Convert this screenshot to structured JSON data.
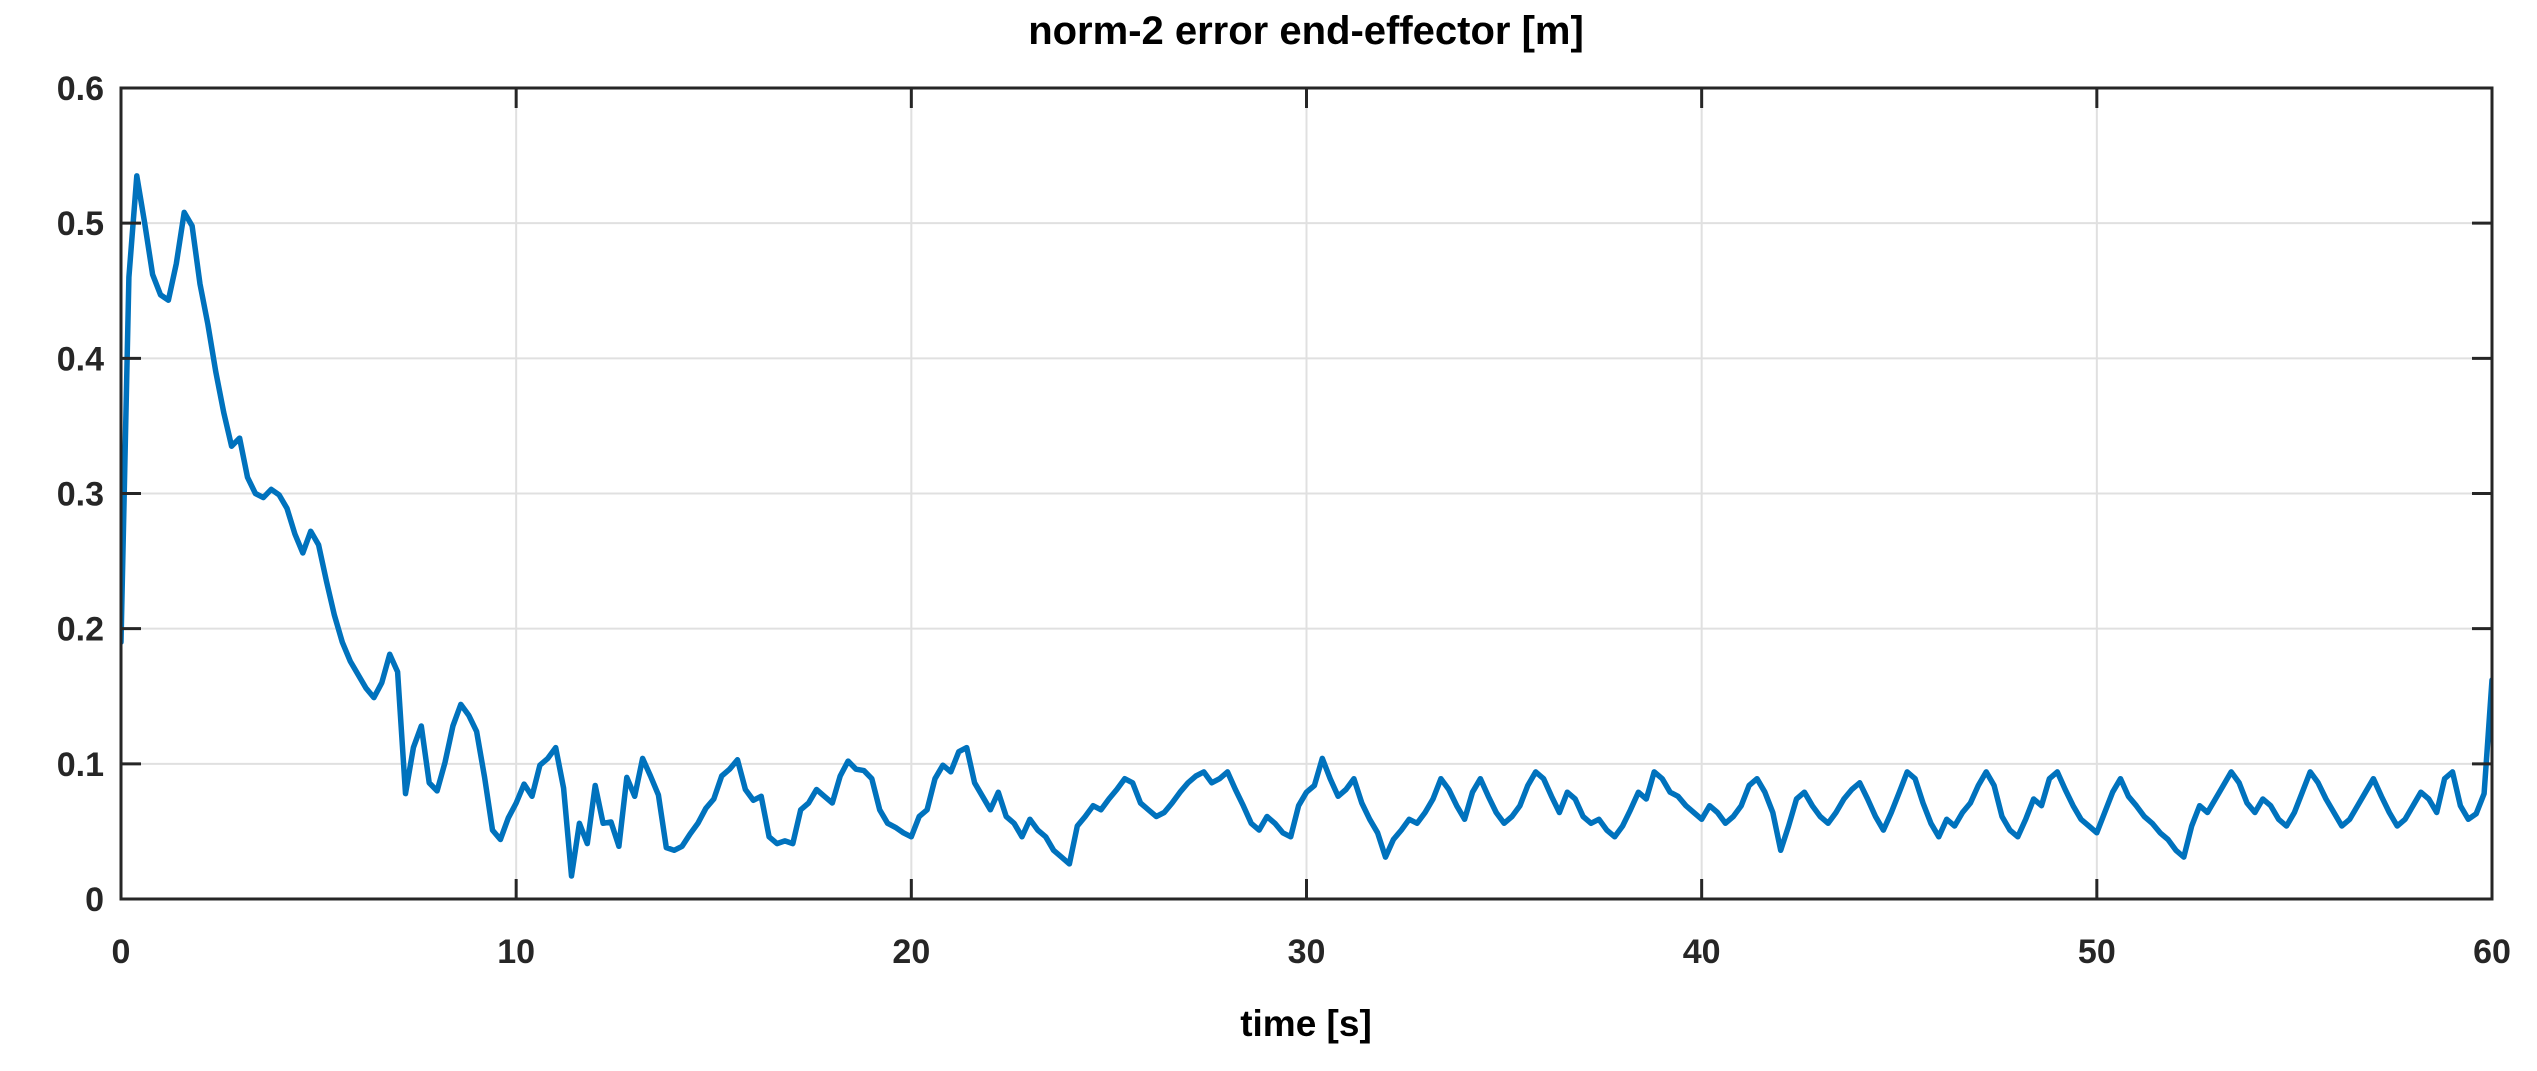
{
  "style": {
    "background": "#FFFFFF",
    "line_color": "#0072BD",
    "axis_color": "#262626",
    "grid_color": "#E0E0E0",
    "tick_label_color": "#262626",
    "text_color": "#000000"
  },
  "chart_data": {
    "type": "line",
    "title": "norm-2 error end-effector [m]",
    "xlabel": "time [s]",
    "ylabel": "",
    "xlim": [
      0,
      60
    ],
    "ylim": [
      0,
      0.6
    ],
    "xticks": [
      0,
      10,
      20,
      30,
      40,
      50,
      60
    ],
    "yticks": [
      0,
      0.1,
      0.2,
      0.3,
      0.4,
      0.5,
      0.6
    ],
    "grid": true,
    "legend": "none",
    "series": [
      {
        "name": "norm-2 error end-effector",
        "color": "#0072BD",
        "x_start": 0,
        "x_step": 0.2,
        "values": [
          0.19,
          0.46,
          0.535,
          0.5,
          0.462,
          0.447,
          0.443,
          0.47,
          0.508,
          0.498,
          0.455,
          0.425,
          0.39,
          0.36,
          0.335,
          0.341,
          0.312,
          0.3,
          0.297,
          0.303,
          0.299,
          0.289,
          0.27,
          0.256,
          0.272,
          0.262,
          0.235,
          0.21,
          0.19,
          0.176,
          0.166,
          0.156,
          0.149,
          0.16,
          0.181,
          0.168,
          0.078,
          0.112,
          0.128,
          0.086,
          0.08,
          0.101,
          0.128,
          0.144,
          0.136,
          0.124,
          0.09,
          0.051,
          0.044,
          0.06,
          0.071,
          0.085,
          0.076,
          0.099,
          0.104,
          0.112,
          0.082,
          0.017,
          0.056,
          0.041,
          0.084,
          0.056,
          0.057,
          0.039,
          0.09,
          0.076,
          0.104,
          0.091,
          0.077,
          0.038,
          0.036,
          0.039,
          0.048,
          0.056,
          0.067,
          0.074,
          0.091,
          0.096,
          0.103,
          0.081,
          0.073,
          0.076,
          0.046,
          0.041,
          0.043,
          0.041,
          0.066,
          0.071,
          0.081,
          0.076,
          0.071,
          0.091,
          0.102,
          0.096,
          0.095,
          0.089,
          0.066,
          0.056,
          0.053,
          0.049,
          0.046,
          0.061,
          0.066,
          0.089,
          0.099,
          0.094,
          0.109,
          0.112,
          0.086,
          0.076,
          0.066,
          0.079,
          0.061,
          0.056,
          0.046,
          0.059,
          0.051,
          0.046,
          0.036,
          0.031,
          0.026,
          0.054,
          0.061,
          0.069,
          0.066,
          0.074,
          0.081,
          0.089,
          0.086,
          0.071,
          0.066,
          0.061,
          0.064,
          0.071,
          0.079,
          0.086,
          0.091,
          0.094,
          0.086,
          0.089,
          0.094,
          0.081,
          0.069,
          0.056,
          0.051,
          0.061,
          0.056,
          0.049,
          0.046,
          0.069,
          0.079,
          0.084,
          0.104,
          0.089,
          0.076,
          0.081,
          0.089,
          0.071,
          0.059,
          0.049,
          0.031,
          0.044,
          0.051,
          0.059,
          0.056,
          0.064,
          0.074,
          0.089,
          0.081,
          0.069,
          0.059,
          0.079,
          0.089,
          0.076,
          0.064,
          0.056,
          0.061,
          0.069,
          0.084,
          0.094,
          0.089,
          0.076,
          0.064,
          0.079,
          0.074,
          0.061,
          0.056,
          0.059,
          0.051,
          0.046,
          0.054,
          0.066,
          0.079,
          0.074,
          0.094,
          0.089,
          0.079,
          0.076,
          0.069,
          0.064,
          0.059,
          0.069,
          0.064,
          0.056,
          0.061,
          0.069,
          0.084,
          0.089,
          0.079,
          0.064,
          0.036,
          0.054,
          0.074,
          0.079,
          0.069,
          0.061,
          0.056,
          0.064,
          0.074,
          0.081,
          0.086,
          0.074,
          0.061,
          0.051,
          0.064,
          0.079,
          0.094,
          0.089,
          0.071,
          0.056,
          0.046,
          0.059,
          0.054,
          0.064,
          0.071,
          0.084,
          0.094,
          0.084,
          0.061,
          0.051,
          0.046,
          0.059,
          0.074,
          0.069,
          0.089,
          0.094,
          0.081,
          0.069,
          0.059,
          0.054,
          0.049,
          0.064,
          0.079,
          0.089,
          0.076,
          0.069,
          0.061,
          0.056,
          0.049,
          0.044,
          0.036,
          0.031,
          0.054,
          0.069,
          0.064,
          0.074,
          0.084,
          0.094,
          0.086,
          0.071,
          0.064,
          0.074,
          0.069,
          0.059,
          0.054,
          0.064,
          0.079,
          0.094,
          0.086,
          0.074,
          0.064,
          0.054,
          0.059,
          0.069,
          0.079,
          0.089,
          0.076,
          0.064,
          0.054,
          0.059,
          0.069,
          0.079,
          0.074,
          0.064,
          0.089,
          0.094,
          0.069,
          0.059,
          0.063,
          0.078,
          0.162
        ]
      }
    ]
  }
}
